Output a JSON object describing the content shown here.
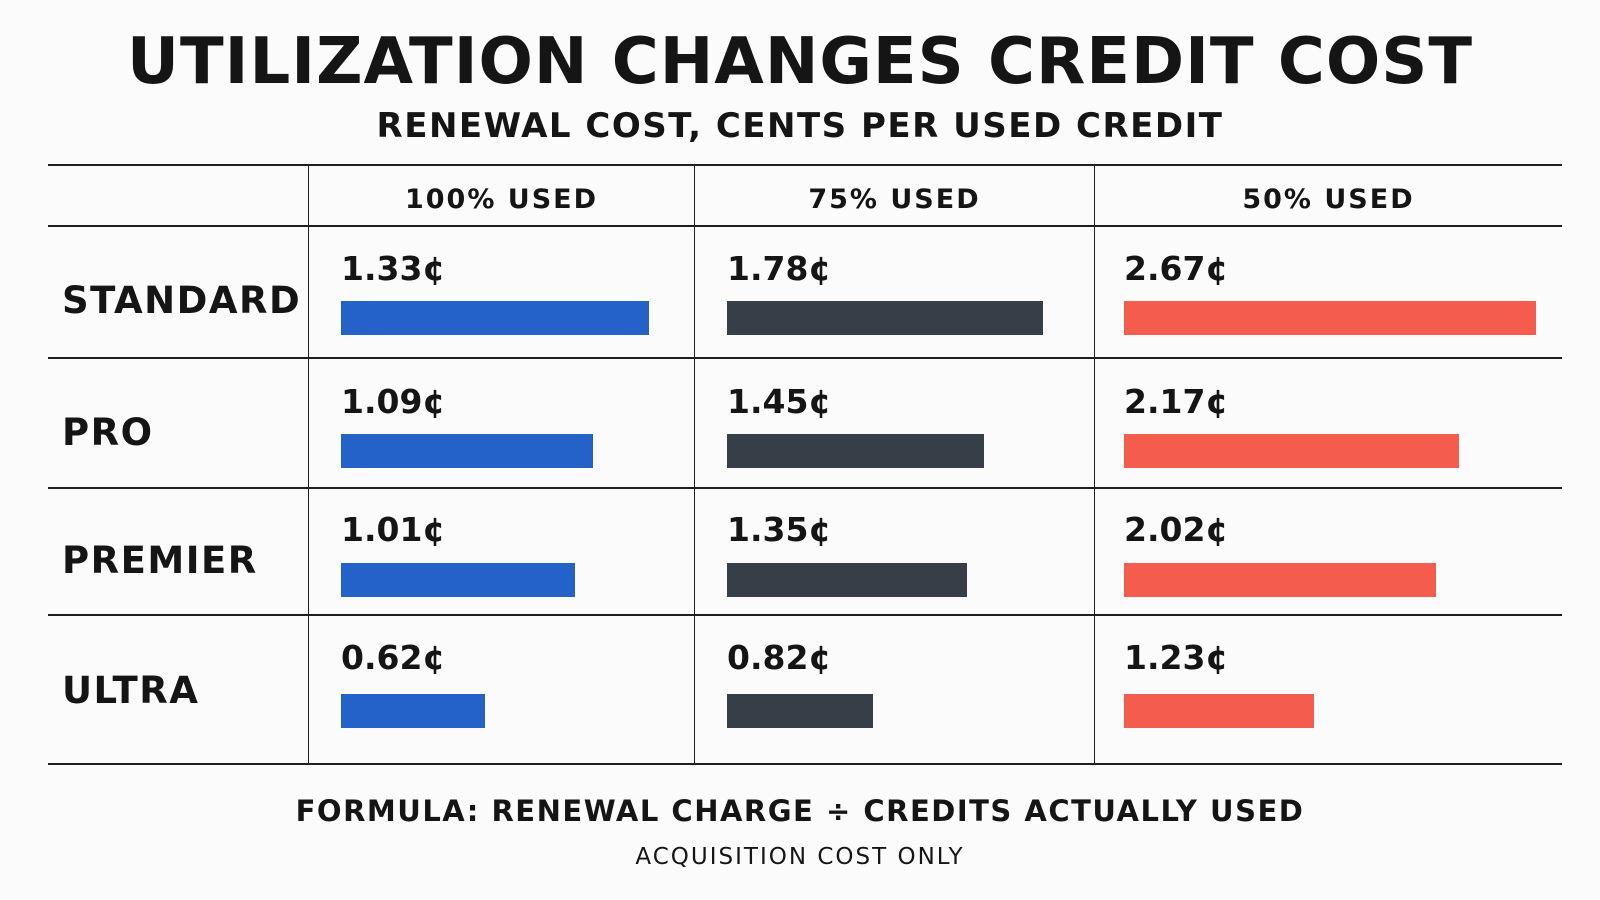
{
  "chart_data": {
    "type": "table",
    "title": "UTILIZATION CHANGES CREDIT COST",
    "subtitle": "RENEWAL COST, CENTS PER USED CREDIT",
    "columns": [
      {
        "label": "100% USED",
        "color": "#2461c9"
      },
      {
        "label": "75% USED",
        "color": "#363e47"
      },
      {
        "label": "50% USED",
        "color": "#f45c4d"
      }
    ],
    "rows": [
      {
        "label": "STANDARD",
        "values": [
          1.33,
          1.78,
          2.67
        ],
        "display": [
          "1.33¢",
          "1.78¢",
          "2.67¢"
        ]
      },
      {
        "label": "PRO",
        "values": [
          1.09,
          1.45,
          2.17
        ],
        "display": [
          "1.09¢",
          "1.45¢",
          "2.17¢"
        ]
      },
      {
        "label": "PREMIER",
        "values": [
          1.01,
          1.35,
          2.02
        ],
        "display": [
          "1.01¢",
          "1.35¢",
          "2.02¢"
        ]
      },
      {
        "label": "ULTRA",
        "values": [
          0.62,
          0.82,
          1.23
        ],
        "display": [
          "0.62¢",
          "0.82¢",
          "1.23¢"
        ]
      }
    ],
    "unit": "¢",
    "formula": "FORMULA: RENEWAL CHARGE ÷ CREDITS ACTUALLY USED",
    "note": "ACQUISITION COST ONLY"
  }
}
